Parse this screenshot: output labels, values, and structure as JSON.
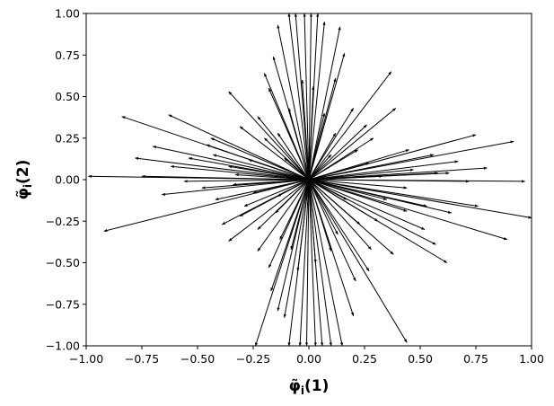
{
  "chart_data": {
    "type": "quiver",
    "title": "",
    "xlabel": "φ̃i(1)",
    "ylabel": "φ̃i(2)",
    "xlabel_main": "φ̃",
    "xlabel_sub": "i",
    "xlabel_paren": "(1)",
    "ylabel_main": "φ̃",
    "ylabel_sub": "i",
    "ylabel_paren": "(2)",
    "xlim": [
      -1.0,
      1.0
    ],
    "ylim": [
      -1.0,
      1.0
    ],
    "xticks": [
      -1.0,
      -0.75,
      -0.5,
      -0.25,
      0.0,
      0.25,
      0.5,
      0.75,
      1.0
    ],
    "yticks": [
      -1.0,
      -0.75,
      -0.5,
      -0.25,
      0.0,
      0.25,
      0.5,
      0.75,
      1.0
    ],
    "xtick_labels": [
      "−1.00",
      "−0.75",
      "−0.50",
      "−0.25",
      "0.00",
      "0.25",
      "0.50",
      "0.75",
      "1.00"
    ],
    "ytick_labels": [
      "−1.00",
      "−0.75",
      "−0.50",
      "−0.25",
      "0.00",
      "0.25",
      "0.50",
      "0.75",
      "1.00"
    ],
    "grid": false,
    "origin": [
      0,
      0
    ],
    "arrow_color": "#000000",
    "arrows": [
      [
        -0.84,
        0.38
      ],
      [
        -0.92,
        -0.31
      ],
      [
        -0.99,
        0.02
      ],
      [
        -0.63,
        0.39
      ],
      [
        -0.36,
        0.53
      ],
      [
        -0.78,
        0.13
      ],
      [
        -0.75,
        0.02
      ],
      [
        -0.66,
        -0.09
      ],
      [
        -0.39,
        -0.27
      ],
      [
        -0.36,
        -0.37
      ],
      [
        -0.23,
        -0.43
      ],
      [
        -0.18,
        -0.53
      ],
      [
        -0.17,
        -0.67
      ],
      [
        -0.14,
        -0.79
      ],
      [
        -0.11,
        -0.83
      ],
      [
        -0.24,
        -1.0
      ],
      [
        -0.09,
        -1.0
      ],
      [
        -0.04,
        -1.0
      ],
      [
        -0.01,
        -1.0
      ],
      [
        0.03,
        -1.0
      ],
      [
        0.06,
        -1.0
      ],
      [
        0.1,
        -1.0
      ],
      [
        0.15,
        -1.0
      ],
      [
        0.2,
        -0.82
      ],
      [
        0.21,
        -0.61
      ],
      [
        0.27,
        -0.55
      ],
      [
        0.38,
        -0.45
      ],
      [
        0.44,
        -0.98
      ],
      [
        0.57,
        -0.39
      ],
      [
        0.62,
        -0.5
      ],
      [
        0.64,
        -0.2
      ],
      [
        0.76,
        -0.16
      ],
      [
        0.89,
        -0.36
      ],
      [
        0.97,
        -0.01
      ],
      [
        1.0,
        -0.23
      ],
      [
        0.72,
        -0.01
      ],
      [
        0.63,
        0.04
      ],
      [
        0.8,
        0.07
      ],
      [
        0.92,
        0.23
      ],
      [
        0.75,
        0.27
      ],
      [
        0.67,
        0.11
      ],
      [
        0.39,
        0.43
      ],
      [
        0.37,
        0.65
      ],
      [
        0.2,
        0.43
      ],
      [
        0.12,
        0.61
      ],
      [
        0.16,
        0.76
      ],
      [
        0.14,
        0.92
      ],
      [
        0.07,
        0.95
      ],
      [
        0.04,
        1.0
      ],
      [
        0.01,
        1.0
      ],
      [
        -0.02,
        1.0
      ],
      [
        -0.06,
        1.0
      ],
      [
        -0.09,
        1.0
      ],
      [
        -0.14,
        0.93
      ],
      [
        -0.16,
        0.74
      ],
      [
        -0.18,
        0.55
      ],
      [
        -0.23,
        0.38
      ],
      [
        -0.31,
        0.32
      ],
      [
        -0.46,
        0.21
      ],
      [
        -0.54,
        0.13
      ],
      [
        -0.56,
        -0.01
      ],
      [
        -0.48,
        -0.05
      ],
      [
        -0.42,
        -0.12
      ],
      [
        -0.29,
        -0.16
      ],
      [
        -0.31,
        -0.22
      ],
      [
        -0.13,
        -0.36
      ],
      [
        -0.08,
        -0.42
      ],
      [
        -0.05,
        -0.55
      ],
      [
        0.03,
        -0.5
      ],
      [
        0.1,
        -0.43
      ],
      [
        0.13,
        -0.33
      ],
      [
        0.23,
        -0.27
      ],
      [
        0.31,
        -0.25
      ],
      [
        0.44,
        -0.19
      ],
      [
        0.53,
        -0.16
      ],
      [
        0.44,
        -0.05
      ],
      [
        0.47,
        0.06
      ],
      [
        0.56,
        0.15
      ],
      [
        0.45,
        0.18
      ],
      [
        0.29,
        0.25
      ],
      [
        0.26,
        0.33
      ],
      [
        0.22,
        0.18
      ],
      [
        0.12,
        0.28
      ],
      [
        0.07,
        0.4
      ],
      [
        0.02,
        0.56
      ],
      [
        -0.03,
        0.6
      ],
      [
        -0.09,
        0.43
      ],
      [
        -0.14,
        0.28
      ],
      [
        -0.2,
        0.25
      ],
      [
        -0.27,
        0.12
      ],
      [
        -0.36,
        0.08
      ],
      [
        -0.33,
        0.03
      ],
      [
        -0.34,
        -0.03
      ],
      [
        -0.25,
        -0.08
      ],
      [
        -0.23,
        -0.3
      ],
      [
        -0.15,
        -0.2
      ],
      [
        0.33,
        0.02
      ],
      [
        0.1,
        0.15
      ],
      [
        -0.11,
        0.13
      ],
      [
        -0.14,
        -0.1
      ],
      [
        0.17,
        -0.12
      ],
      [
        0.35,
        -0.12
      ],
      [
        -0.44,
        0.25
      ],
      [
        -0.62,
        0.08
      ],
      [
        -0.7,
        0.2
      ],
      [
        -0.43,
        0.15
      ],
      [
        0.52,
        -0.3
      ],
      [
        0.28,
        -0.42
      ],
      [
        -0.2,
        0.64
      ],
      [
        0.27,
        0.1
      ],
      [
        0.58,
        0.04
      ]
    ]
  }
}
